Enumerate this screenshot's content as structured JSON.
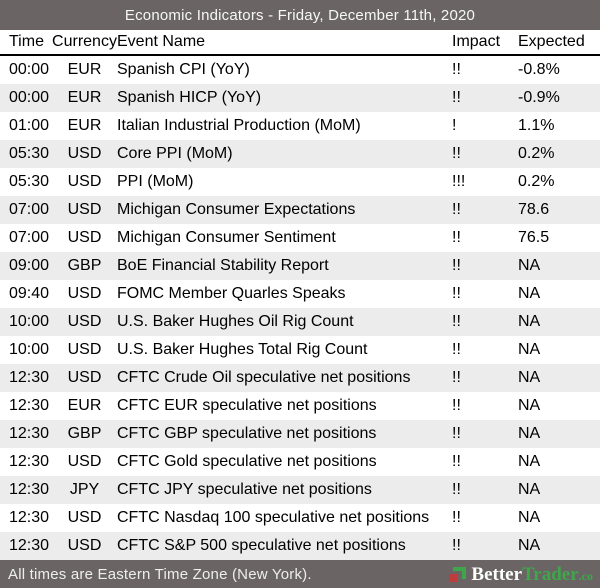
{
  "header": {
    "title": "Economic Indicators - Friday, December 11th, 2020"
  },
  "columns": {
    "time": "Time",
    "currency": "Currency",
    "event": "Event Name",
    "impact": "Impact",
    "expected": "Expected"
  },
  "rows": [
    {
      "time": "00:00",
      "currency": "EUR",
      "event": "Spanish CPI (YoY)",
      "impact": "!!",
      "expected": "-0.8%"
    },
    {
      "time": "00:00",
      "currency": "EUR",
      "event": "Spanish HICP (YoY)",
      "impact": "!!",
      "expected": "-0.9%"
    },
    {
      "time": "01:00",
      "currency": "EUR",
      "event": "Italian Industrial Production (MoM)",
      "impact": "!",
      "expected": "1.1%"
    },
    {
      "time": "05:30",
      "currency": "USD",
      "event": "Core PPI (MoM)",
      "impact": "!!",
      "expected": "0.2%"
    },
    {
      "time": "05:30",
      "currency": "USD",
      "event": "PPI (MoM)",
      "impact": "!!!",
      "expected": "0.2%"
    },
    {
      "time": "07:00",
      "currency": "USD",
      "event": "Michigan Consumer Expectations",
      "impact": "!!",
      "expected": "78.6"
    },
    {
      "time": "07:00",
      "currency": "USD",
      "event": "Michigan Consumer Sentiment",
      "impact": "!!",
      "expected": "76.5"
    },
    {
      "time": "09:00",
      "currency": "GBP",
      "event": "BoE Financial Stability Report",
      "impact": "!!",
      "expected": "NA"
    },
    {
      "time": "09:40",
      "currency": "USD",
      "event": "FOMC Member Quarles Speaks",
      "impact": "!!",
      "expected": "NA"
    },
    {
      "time": "10:00",
      "currency": "USD",
      "event": "U.S. Baker Hughes Oil Rig Count",
      "impact": "!!",
      "expected": "NA"
    },
    {
      "time": "10:00",
      "currency": "USD",
      "event": "U.S. Baker Hughes Total Rig Count",
      "impact": "!!",
      "expected": "NA"
    },
    {
      "time": "12:30",
      "currency": "USD",
      "event": "CFTC Crude Oil speculative net positions",
      "impact": "!!",
      "expected": "NA"
    },
    {
      "time": "12:30",
      "currency": "EUR",
      "event": "CFTC EUR speculative net positions",
      "impact": "!!",
      "expected": "NA"
    },
    {
      "time": "12:30",
      "currency": "GBP",
      "event": "CFTC GBP speculative net positions",
      "impact": "!!",
      "expected": "NA"
    },
    {
      "time": "12:30",
      "currency": "USD",
      "event": "CFTC Gold speculative net positions",
      "impact": "!!",
      "expected": "NA"
    },
    {
      "time": "12:30",
      "currency": "JPY",
      "event": "CFTC JPY speculative net positions",
      "impact": "!!",
      "expected": "NA"
    },
    {
      "time": "12:30",
      "currency": "USD",
      "event": "CFTC Nasdaq 100 speculative net positions",
      "impact": "!!",
      "expected": "NA"
    },
    {
      "time": "12:30",
      "currency": "USD",
      "event": "CFTC S&P 500 speculative net positions",
      "impact": "!!",
      "expected": "NA"
    }
  ],
  "footer": {
    "note": "All times are Eastern Time Zone (New York).",
    "logo": {
      "better": "Better",
      "trader": "Trader",
      "tld": ".co"
    }
  },
  "colors": {
    "bar": "#6a6464",
    "stripe": "#ececec",
    "logo_green": "#3fa64c",
    "logo_red": "#c03c3c"
  }
}
